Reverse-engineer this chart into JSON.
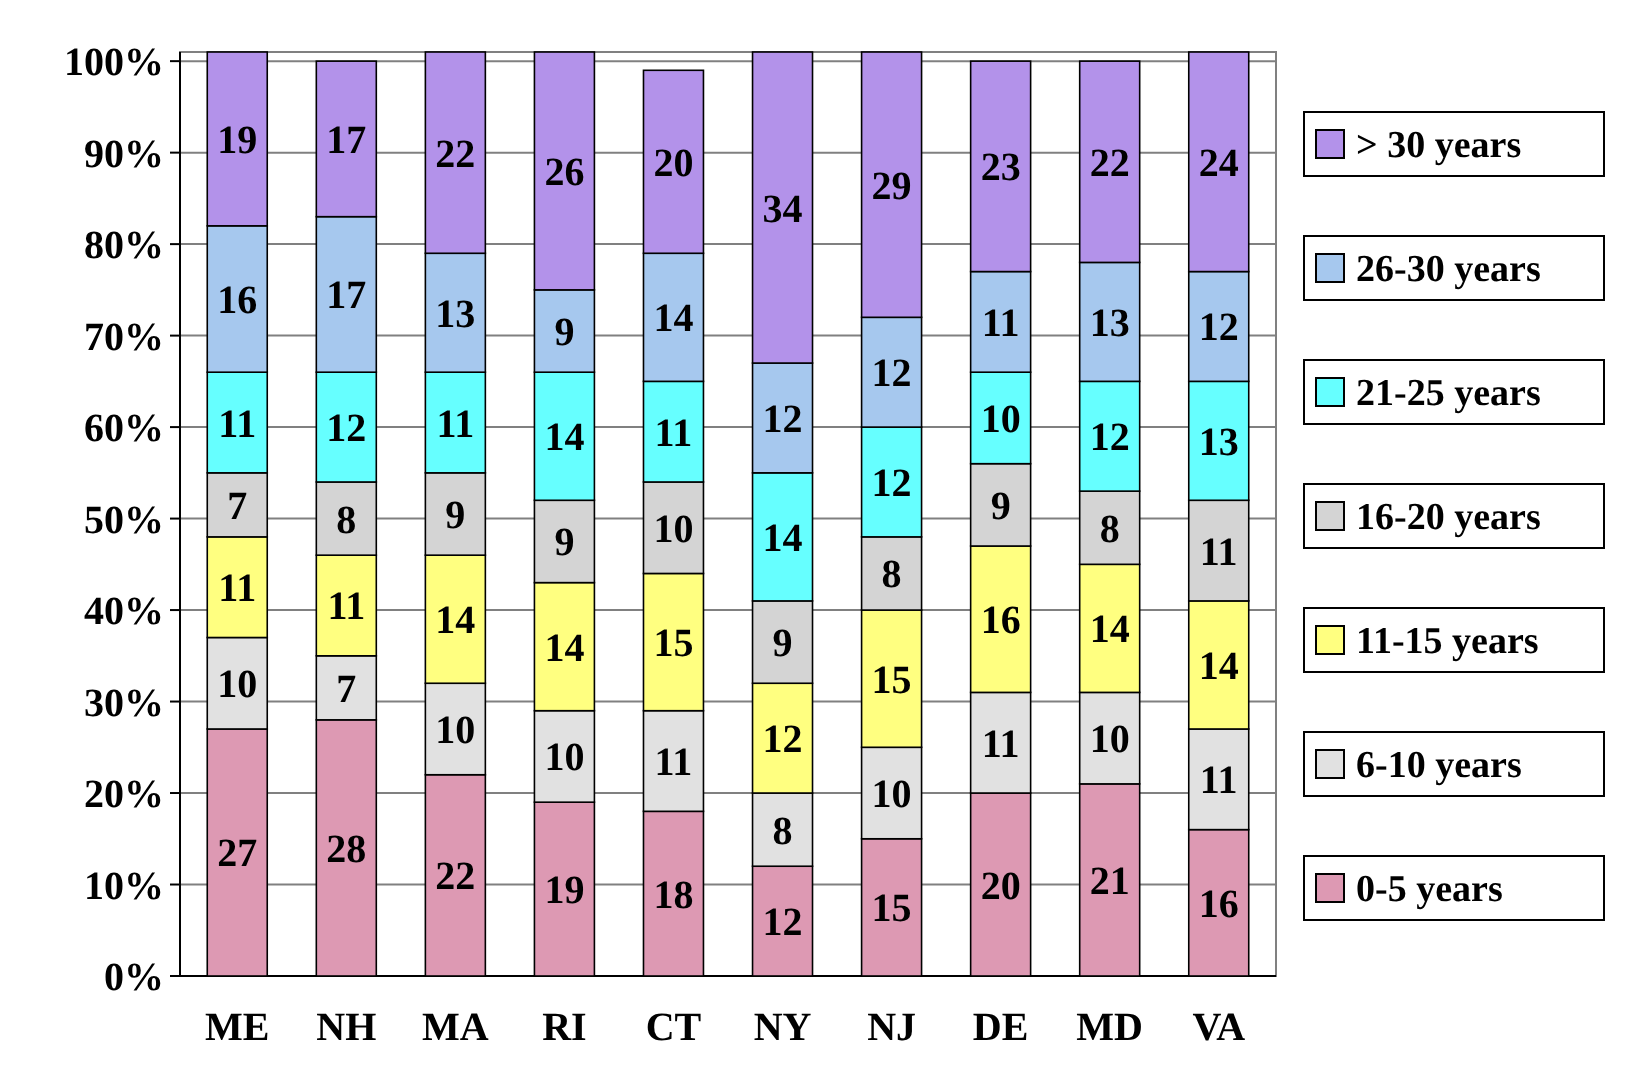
{
  "chart_data": {
    "type": "bar",
    "stacked": true,
    "categories": [
      "ME",
      "NH",
      "MA",
      "RI",
      "CT",
      "NY",
      "NJ",
      "DE",
      "MD",
      "VA"
    ],
    "series": [
      {
        "name": "0-5 years",
        "color": "#dd99b3",
        "values": [
          27,
          28,
          22,
          19,
          18,
          12,
          15,
          20,
          21,
          16
        ]
      },
      {
        "name": "6-10 years",
        "color": "#e1e1e1",
        "values": [
          10,
          7,
          10,
          10,
          11,
          8,
          10,
          11,
          10,
          11
        ]
      },
      {
        "name": "11-15 years",
        "color": "#ffff80",
        "values": [
          11,
          11,
          14,
          14,
          15,
          12,
          15,
          16,
          14,
          14
        ]
      },
      {
        "name": "16-20 years",
        "color": "#d4d4d4",
        "values": [
          7,
          8,
          9,
          9,
          10,
          9,
          8,
          9,
          8,
          11
        ]
      },
      {
        "name": "21-25 years",
        "color": "#66ffff",
        "values": [
          11,
          12,
          11,
          14,
          11,
          14,
          12,
          10,
          12,
          13
        ]
      },
      {
        "name": "26-30 years",
        "color": "#a6c8ee",
        "values": [
          16,
          17,
          13,
          9,
          14,
          12,
          12,
          11,
          13,
          12
        ]
      },
      {
        "name": "> 30 years",
        "color": "#b392ea",
        "values": [
          19,
          17,
          22,
          26,
          20,
          34,
          29,
          23,
          22,
          24
        ]
      }
    ],
    "ylim": [
      0,
      101
    ],
    "yticks": [
      {
        "value": 0,
        "label": "0%"
      },
      {
        "value": 10,
        "label": "10%"
      },
      {
        "value": 20,
        "label": "20%"
      },
      {
        "value": 30,
        "label": "30%"
      },
      {
        "value": 40,
        "label": "40%"
      },
      {
        "value": 50,
        "label": "50%"
      },
      {
        "value": 60,
        "label": "60%"
      },
      {
        "value": 70,
        "label": "70%"
      },
      {
        "value": 80,
        "label": "80%"
      },
      {
        "value": 90,
        "label": "90%"
      },
      {
        "value": 100,
        "label": "100%"
      }
    ],
    "grid": "y",
    "data_labels": true,
    "legend": "right"
  }
}
